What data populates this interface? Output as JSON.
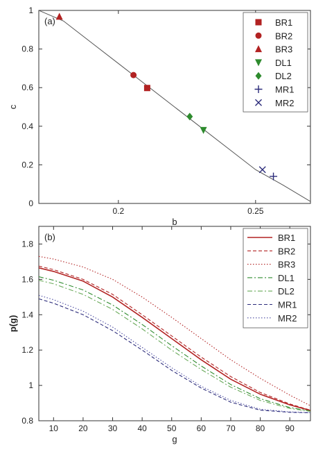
{
  "colors": {
    "red": "#b22222",
    "green": "#2e8b2e",
    "lightgreen": "#6aaa5a",
    "navy": "#2b2b7a",
    "indigo": "#4a4aa0",
    "axis": "#333333"
  },
  "chart_data": [
    {
      "type": "line",
      "panel_label": "(a)",
      "xlabel": "b",
      "ylabel": "c",
      "xlim": [
        0.171,
        0.27
      ],
      "ylim": [
        0,
        1
      ],
      "xticks": [
        0.2,
        0.25
      ],
      "xtick_labels": [
        "0.2",
        "0.25"
      ],
      "yticks": [
        0,
        0.2,
        0.4,
        0.6,
        0.8,
        1
      ],
      "ytick_labels": [
        "0",
        "0.2",
        "0.4",
        "0.6",
        "0.8",
        "1"
      ],
      "grid": false,
      "legend_position": "top-right",
      "curve": {
        "x": [
          0.171,
          0.18,
          0.19,
          0.2,
          0.21,
          0.22,
          0.23,
          0.24,
          0.25,
          0.26,
          0.27
        ],
        "y": [
          1.0,
          0.945,
          0.835,
          0.725,
          0.615,
          0.505,
          0.395,
          0.285,
          0.175,
          0.095,
          0.01
        ]
      },
      "series": [
        {
          "name": "BR1",
          "marker": "square",
          "color": "#b22222",
          "x": 0.2105,
          "y": 0.598
        },
        {
          "name": "BR2",
          "marker": "circle",
          "color": "#b22222",
          "x": 0.2055,
          "y": 0.665
        },
        {
          "name": "BR3",
          "marker": "triangle-up",
          "color": "#b22222",
          "x": 0.1785,
          "y": 0.968
        },
        {
          "name": "DL1",
          "marker": "triangle-down",
          "color": "#2e8b2e",
          "x": 0.231,
          "y": 0.38
        },
        {
          "name": "DL2",
          "marker": "diamond",
          "color": "#2e8b2e",
          "x": 0.226,
          "y": 0.45
        },
        {
          "name": "MR1",
          "marker": "plus",
          "color": "#2b2b7a",
          "x": 0.2565,
          "y": 0.14
        },
        {
          "name": "MR2",
          "marker": "x",
          "color": "#2b2b7a",
          "x": 0.2525,
          "y": 0.175
        }
      ]
    },
    {
      "type": "line",
      "panel_label": "(b)",
      "xlabel": "g",
      "ylabel": "p(g)",
      "xlim": [
        5,
        97
      ],
      "ylim": [
        0.8,
        1.9
      ],
      "xticks": [
        10,
        20,
        30,
        40,
        50,
        60,
        70,
        80,
        90
      ],
      "xtick_labels": [
        "10",
        "20",
        "30",
        "40",
        "50",
        "60",
        "70",
        "80",
        "90"
      ],
      "yticks": [
        0.8,
        1,
        1.2,
        1.4,
        1.6,
        1.8
      ],
      "ytick_labels": [
        "0.8",
        "1",
        "1.2",
        "1.4",
        "1.6",
        "1.8"
      ],
      "grid": false,
      "legend_position": "top-right",
      "x": [
        5,
        10,
        20,
        30,
        40,
        50,
        60,
        70,
        80,
        90,
        97
      ],
      "series": [
        {
          "name": "BR1",
          "style": "solid",
          "color": "#b22222",
          "values": [
            1.665,
            1.645,
            1.59,
            1.5,
            1.385,
            1.265,
            1.145,
            1.035,
            0.95,
            0.89,
            0.858
          ]
        },
        {
          "name": "BR2",
          "style": "dashed",
          "color": "#b22222",
          "values": [
            1.675,
            1.655,
            1.6,
            1.515,
            1.4,
            1.28,
            1.16,
            1.05,
            0.96,
            0.895,
            0.86
          ]
        },
        {
          "name": "BR3",
          "style": "dotted",
          "color": "#b22222",
          "values": [
            1.73,
            1.715,
            1.67,
            1.6,
            1.5,
            1.385,
            1.265,
            1.145,
            1.04,
            0.945,
            0.885
          ]
        },
        {
          "name": "DL1",
          "style": "dashdot",
          "color": "#2e8b2e",
          "values": [
            1.615,
            1.595,
            1.54,
            1.455,
            1.345,
            1.225,
            1.11,
            1.005,
            0.925,
            0.875,
            0.855
          ]
        },
        {
          "name": "DL2",
          "style": "dashdot",
          "color": "#6aaa5a",
          "values": [
            1.595,
            1.575,
            1.515,
            1.43,
            1.32,
            1.2,
            1.09,
            0.99,
            0.915,
            0.87,
            0.853
          ]
        },
        {
          "name": "MR1",
          "style": "dashed",
          "color": "#2b2b7a",
          "values": [
            1.49,
            1.465,
            1.4,
            1.31,
            1.2,
            1.085,
            0.985,
            0.905,
            0.86,
            0.848,
            0.845
          ]
        },
        {
          "name": "MR2",
          "style": "dotted",
          "color": "#4a4aa0",
          "values": [
            1.51,
            1.485,
            1.42,
            1.33,
            1.215,
            1.1,
            0.995,
            0.915,
            0.865,
            0.85,
            0.846
          ]
        }
      ]
    }
  ]
}
